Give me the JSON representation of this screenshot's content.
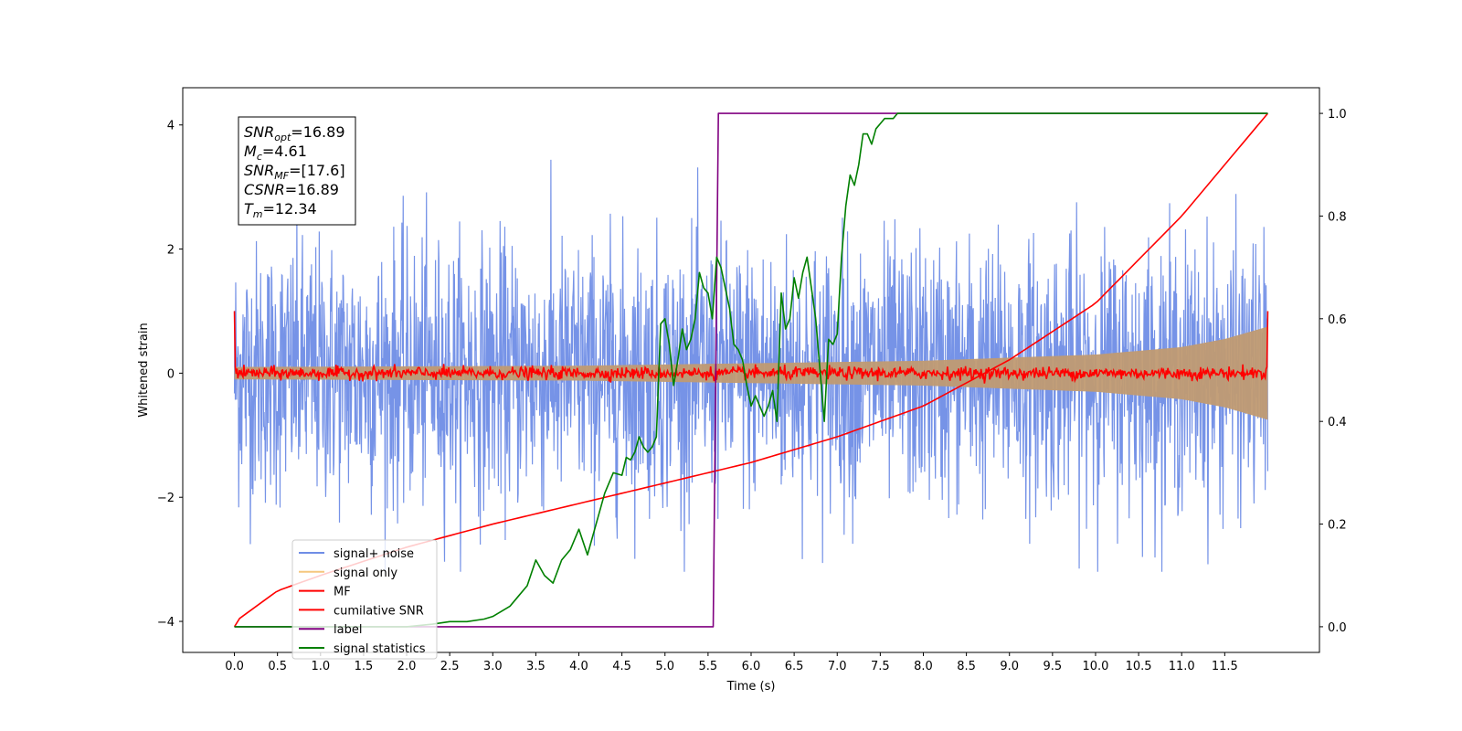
{
  "chart_data": {
    "type": "line",
    "title": "",
    "xlabel": "Time (s)",
    "ylabel": "Whitened strain",
    "xlim": [
      -0.6,
      12.6
    ],
    "ylim_left": [
      -4.5,
      4.6
    ],
    "ylim_right": [
      -0.05,
      1.05
    ],
    "x_ticks": [
      0.0,
      0.5,
      1.0,
      1.5,
      2.0,
      2.5,
      3.0,
      3.5,
      4.0,
      4.5,
      5.0,
      5.5,
      6.0,
      6.5,
      7.0,
      7.5,
      8.0,
      8.5,
      9.0,
      9.5,
      10.0,
      10.5,
      11.0,
      11.5
    ],
    "x_tick_labels": [
      "0.0",
      "0.5",
      "1.0",
      "1.5",
      "2.0",
      "2.5",
      "3.0",
      "3.5",
      "4.0",
      "4.5",
      "5.0",
      "5.5",
      "6.0",
      "6.5",
      "7.0",
      "7.5",
      "8.0",
      "8.5",
      "9.0",
      "9.5",
      "10.0",
      "10.5",
      "11.0",
      "11.5"
    ],
    "y_left_ticks": [
      -4,
      -2,
      0,
      2,
      4
    ],
    "y_left_tick_labels": [
      "−4",
      "−2",
      "0",
      "2",
      "4"
    ],
    "y_right_ticks": [
      0.0,
      0.2,
      0.4,
      0.6,
      0.8,
      1.0
    ],
    "y_right_tick_labels": [
      "0.0",
      "0.2",
      "0.4",
      "0.6",
      "0.8",
      "1.0"
    ],
    "grid": false,
    "legend_position": "lower-left",
    "series": [
      {
        "name": "signal+ noise",
        "axis": "left",
        "color": "#6f8de6",
        "kind": "noise_band",
        "t_range": [
          0.0,
          12.0
        ],
        "approx_envelope": [
          -3.2,
          3.8
        ]
      },
      {
        "name": "signal only",
        "axis": "left",
        "color": "#f5c77e",
        "kind": "chirp_band",
        "t_range": [
          0.0,
          12.0
        ],
        "amplitude_points": {
          "x": [
            0.0,
            4.0,
            8.0,
            10.0,
            11.0,
            11.5,
            12.0
          ],
          "y": [
            0.1,
            0.12,
            0.2,
            0.3,
            0.42,
            0.55,
            0.75
          ]
        }
      },
      {
        "name": "MF",
        "axis": "left",
        "color": "#ff0000",
        "kind": "noisy_line",
        "t_range": [
          0.0,
          12.0
        ],
        "start_value": 1.0,
        "end_value": 1.0,
        "baseline": 0.0,
        "jitter": 0.05
      },
      {
        "name": "cumilative SNR",
        "axis": "right",
        "color": "#ff0000",
        "x": [
          0.0,
          0.05,
          0.5,
          1.0,
          2.0,
          3.0,
          4.0,
          5.0,
          6.0,
          7.0,
          8.0,
          9.0,
          10.0,
          11.0,
          11.5,
          12.0
        ],
        "y": [
          0.0,
          0.015,
          0.07,
          0.1,
          0.155,
          0.2,
          0.24,
          0.28,
          0.32,
          0.37,
          0.43,
          0.52,
          0.63,
          0.8,
          0.9,
          1.0
        ]
      },
      {
        "name": "label",
        "axis": "right",
        "color": "#800080",
        "x": [
          0.0,
          5.56,
          5.62,
          12.0
        ],
        "y": [
          0.0,
          0.0,
          1.0,
          1.0
        ]
      },
      {
        "name": "signal statistics",
        "axis": "right",
        "color": "#008000",
        "x": [
          0.0,
          2.0,
          2.3,
          2.5,
          2.7,
          2.9,
          3.0,
          3.2,
          3.3,
          3.4,
          3.5,
          3.6,
          3.7,
          3.8,
          3.9,
          4.0,
          4.1,
          4.2,
          4.3,
          4.4,
          4.5,
          4.55,
          4.6,
          4.65,
          4.7,
          4.75,
          4.8,
          4.85,
          4.9,
          4.95,
          5.0,
          5.05,
          5.1,
          5.15,
          5.2,
          5.25,
          5.3,
          5.35,
          5.4,
          5.45,
          5.5,
          5.55,
          5.6,
          5.65,
          5.7,
          5.75,
          5.8,
          5.85,
          5.9,
          5.95,
          6.0,
          6.05,
          6.1,
          6.15,
          6.2,
          6.25,
          6.3,
          6.35,
          6.4,
          6.45,
          6.5,
          6.55,
          6.6,
          6.65,
          6.7,
          6.75,
          6.8,
          6.85,
          6.9,
          6.95,
          7.0,
          7.05,
          7.1,
          7.15,
          7.2,
          7.25,
          7.3,
          7.35,
          7.4,
          7.45,
          7.5,
          7.55,
          7.6,
          7.65,
          7.7,
          7.75,
          7.8,
          7.85,
          7.9,
          7.95,
          8.0,
          8.1,
          8.2,
          8.3,
          8.4,
          8.6,
          9.0,
          9.5,
          10.0,
          11.0,
          12.0
        ],
        "y": [
          0.0,
          0.0,
          0.005,
          0.01,
          0.01,
          0.015,
          0.02,
          0.04,
          0.06,
          0.08,
          0.13,
          0.1,
          0.085,
          0.13,
          0.15,
          0.19,
          0.14,
          0.2,
          0.26,
          0.3,
          0.295,
          0.33,
          0.325,
          0.34,
          0.37,
          0.35,
          0.34,
          0.35,
          0.37,
          0.59,
          0.6,
          0.55,
          0.47,
          0.52,
          0.58,
          0.54,
          0.56,
          0.6,
          0.69,
          0.66,
          0.65,
          0.6,
          0.72,
          0.7,
          0.66,
          0.62,
          0.55,
          0.54,
          0.52,
          0.47,
          0.43,
          0.45,
          0.43,
          0.41,
          0.43,
          0.46,
          0.4,
          0.65,
          0.58,
          0.6,
          0.68,
          0.64,
          0.69,
          0.72,
          0.66,
          0.6,
          0.5,
          0.4,
          0.56,
          0.55,
          0.57,
          0.72,
          0.82,
          0.88,
          0.86,
          0.9,
          0.96,
          0.96,
          0.94,
          0.97,
          0.98,
          0.99,
          0.99,
          0.99,
          1.0,
          1.0,
          1.0,
          1.0,
          1.0,
          1.0,
          1.0,
          1.0,
          1.0,
          1.0,
          1.0,
          1.0,
          1.0,
          1.0,
          1.0,
          1.0,
          1.0
        ]
      }
    ],
    "annotation": [
      {
        "sym": "SNR",
        "sub": "opt",
        "value": "=16.89"
      },
      {
        "sym": "M",
        "sub": "c",
        "value": "=4.61"
      },
      {
        "sym": "SNR",
        "sub": "MF",
        "value": "=[17.6]"
      },
      {
        "sym": "CSNR",
        "sub": "",
        "value": "=16.89"
      },
      {
        "sym": "T",
        "sub": "m",
        "value": "=12.34"
      }
    ]
  }
}
